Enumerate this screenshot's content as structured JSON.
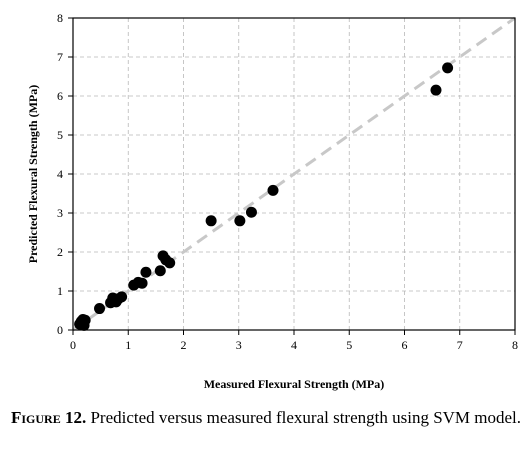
{
  "chart_data": {
    "type": "scatter",
    "xlabel": "Measured Flexural Strength (MPa)",
    "ylabel": "Predicted Flexural Strength (MPa)",
    "xlim": [
      0,
      8
    ],
    "ylim": [
      0,
      8
    ],
    "x_ticks": [
      "0",
      "1",
      "2",
      "3",
      "4",
      "5",
      "6",
      "7",
      "8"
    ],
    "y_ticks": [
      "0",
      "1",
      "2",
      "3",
      "4",
      "5",
      "6",
      "7",
      "8"
    ],
    "grid": true,
    "grid_style": "dashed",
    "reference_line": {
      "type": "y=x",
      "style": "dashed",
      "color": "#c8c8c8"
    },
    "marker_color": "#000000",
    "points": [
      {
        "x": 0.12,
        "y": 0.15
      },
      {
        "x": 0.15,
        "y": 0.22
      },
      {
        "x": 0.18,
        "y": 0.27
      },
      {
        "x": 0.2,
        "y": 0.12
      },
      {
        "x": 0.22,
        "y": 0.25
      },
      {
        "x": 0.48,
        "y": 0.55
      },
      {
        "x": 0.68,
        "y": 0.7
      },
      {
        "x": 0.72,
        "y": 0.82
      },
      {
        "x": 0.78,
        "y": 0.72
      },
      {
        "x": 0.82,
        "y": 0.8
      },
      {
        "x": 0.88,
        "y": 0.85
      },
      {
        "x": 1.1,
        "y": 1.15
      },
      {
        "x": 1.18,
        "y": 1.22
      },
      {
        "x": 1.25,
        "y": 1.2
      },
      {
        "x": 1.32,
        "y": 1.48
      },
      {
        "x": 1.58,
        "y": 1.52
      },
      {
        "x": 1.63,
        "y": 1.9
      },
      {
        "x": 1.68,
        "y": 1.8
      },
      {
        "x": 1.75,
        "y": 1.72
      },
      {
        "x": 2.5,
        "y": 2.8
      },
      {
        "x": 3.02,
        "y": 2.8
      },
      {
        "x": 3.23,
        "y": 3.02
      },
      {
        "x": 3.62,
        "y": 3.58
      },
      {
        "x": 6.57,
        "y": 6.15
      },
      {
        "x": 6.78,
        "y": 6.72
      }
    ]
  },
  "caption": {
    "label": "Figure 12.",
    "text": "Predicted versus measured flexural strength using SVM model."
  }
}
